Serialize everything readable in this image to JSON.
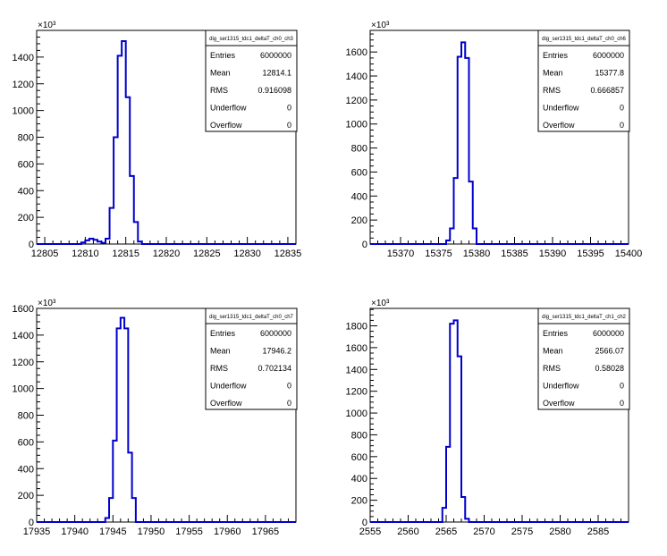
{
  "chart_data": [
    {
      "type": "bar",
      "title": "",
      "histogram_name": "dig_ser1315_tdc1_deltaT_ch0_ch3",
      "y_exponent_label": "×10³",
      "xlim": [
        12804,
        12836
      ],
      "ylim": [
        0,
        1600
      ],
      "xticks": [
        12805,
        12810,
        12815,
        12820,
        12825,
        12830,
        12835
      ],
      "yticks": [
        0,
        200,
        400,
        600,
        800,
        1000,
        1200,
        1400
      ],
      "bin_width": 0.5,
      "bins_x": [
        12809.5,
        12810,
        12810.5,
        12811,
        12811.5,
        12812,
        12812.5,
        12813,
        12813.5,
        12814,
        12814.5,
        12815,
        12815.5,
        12816,
        12816.5
      ],
      "bins_y": [
        12,
        28,
        40,
        32,
        18,
        8,
        40,
        270,
        800,
        1410,
        1520,
        1100,
        510,
        165,
        18
      ],
      "stats": {
        "Entries": "6000000",
        "Mean": "12814.1",
        "RMS": "0.916098",
        "Underflow": "0",
        "Overflow": "0"
      }
    },
    {
      "type": "bar",
      "title": "",
      "histogram_name": "dig_ser1315_tdc1_deltaT_ch0_ch6",
      "y_exponent_label": "×10³",
      "xlim": [
        15366,
        15400
      ],
      "ylim": [
        0,
        1780
      ],
      "xticks": [
        15370,
        15375,
        15380,
        15385,
        15390,
        15395,
        15400
      ],
      "yticks": [
        0,
        200,
        400,
        600,
        800,
        1000,
        1200,
        1400,
        1600
      ],
      "bin_width": 0.5,
      "bins_x": [
        15376,
        15376.5,
        15377,
        15377.5,
        15378,
        15378.5,
        15379,
        15379.5
      ],
      "bins_y": [
        30,
        130,
        550,
        1560,
        1680,
        1550,
        520,
        130
      ],
      "stats": {
        "Entries": "6000000",
        "Mean": "15377.8",
        "RMS": "0.666857",
        "Underflow": "0",
        "Overflow": "0"
      }
    },
    {
      "type": "bar",
      "title": "",
      "histogram_name": "dig_ser1315_tdc1_deltaT_ch0_ch7",
      "y_exponent_label": "×10³",
      "xlim": [
        17935,
        17969
      ],
      "ylim": [
        0,
        1600
      ],
      "xticks": [
        17935,
        17940,
        17945,
        17950,
        17955,
        17960,
        17965
      ],
      "yticks": [
        0,
        200,
        400,
        600,
        800,
        1000,
        1200,
        1400,
        1600
      ],
      "bin_width": 0.5,
      "bins_x": [
        17944,
        17944.5,
        17945,
        17945.5,
        17946,
        17946.5,
        17947,
        17947.5
      ],
      "bins_y": [
        30,
        180,
        610,
        1450,
        1530,
        1450,
        520,
        180
      ],
      "stats": {
        "Entries": "6000000",
        "Mean": "17946.2",
        "RMS": "0.702134",
        "Underflow": "0",
        "Overflow": "0"
      }
    },
    {
      "type": "bar",
      "title": "",
      "histogram_name": "dig_ser1315_tdc1_deltaT_ch1_ch2",
      "y_exponent_label": "×10³",
      "xlim": [
        2555,
        2589
      ],
      "ylim": [
        0,
        1960
      ],
      "xticks": [
        2555,
        2560,
        2565,
        2570,
        2575,
        2580,
        2585
      ],
      "yticks": [
        0,
        200,
        400,
        600,
        800,
        1000,
        1200,
        1400,
        1600,
        1800
      ],
      "bin_width": 0.5,
      "bins_x": [
        2564.5,
        2565,
        2565.5,
        2566,
        2566.5,
        2567,
        2567.5
      ],
      "bins_y": [
        130,
        690,
        1820,
        1850,
        1520,
        230,
        30
      ],
      "stats": {
        "Entries": "6000000",
        "Mean": "2566.07",
        "RMS": "0.58028",
        "Underflow": "0",
        "Overflow": "0"
      }
    }
  ],
  "colors": {
    "histogram_line": "#0000cc",
    "axis": "#000000",
    "background": "#ffffff"
  }
}
